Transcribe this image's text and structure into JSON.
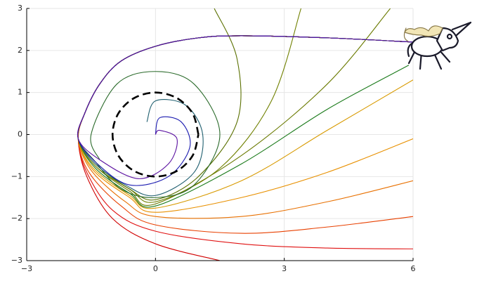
{
  "chart_data": {
    "type": "line",
    "xlim": [
      -3,
      6
    ],
    "ylim": [
      -3,
      3
    ],
    "xticks": [
      {
        "value": -3,
        "label": "−3"
      },
      0,
      3,
      6
    ],
    "yticks": [
      {
        "value": -3,
        "label": "−3"
      },
      {
        "value": -2,
        "label": "−2"
      },
      {
        "value": -1,
        "label": "−1"
      },
      0,
      1,
      2,
      3
    ],
    "grid": true,
    "series": [
      {
        "color": "#d00000",
        "x": [
          6,
          4,
          2,
          1,
          0,
          -0.8,
          -1.3,
          -1.65,
          -1.8,
          -1.6,
          -1.0,
          0,
          1.5
        ],
        "y": [
          2.2,
          2.3,
          2.35,
          2.3,
          2.1,
          1.75,
          1.2,
          0.5,
          -0.1,
          -1.0,
          -2.0,
          -2.6,
          -3.0
        ]
      },
      {
        "color": "#e01010",
        "x": [
          6,
          4,
          2,
          1,
          0,
          -0.8,
          -1.3,
          -1.65,
          -1.8,
          -1.6,
          -1.0,
          0,
          2,
          4,
          6
        ],
        "y": [
          2.2,
          2.3,
          2.35,
          2.3,
          2.1,
          1.75,
          1.2,
          0.5,
          -0.1,
          -0.9,
          -1.8,
          -2.3,
          -2.6,
          -2.7,
          -2.72
        ]
      },
      {
        "color": "#e84000",
        "x": [
          6,
          4,
          2,
          1,
          0,
          -0.8,
          -1.3,
          -1.65,
          -1.8,
          -1.55,
          -0.8,
          0,
          2,
          4,
          6
        ],
        "y": [
          2.2,
          2.3,
          2.35,
          2.3,
          2.1,
          1.75,
          1.2,
          0.5,
          -0.1,
          -0.9,
          -1.7,
          -2.15,
          -2.35,
          -2.2,
          -1.95
        ]
      },
      {
        "color": "#e87000",
        "x": [
          6,
          4,
          2,
          1,
          0,
          -0.8,
          -1.3,
          -1.65,
          -1.8,
          -1.5,
          -0.7,
          0,
          2,
          4,
          6
        ],
        "y": [
          2.2,
          2.3,
          2.35,
          2.3,
          2.1,
          1.75,
          1.2,
          0.5,
          -0.1,
          -0.85,
          -1.6,
          -1.95,
          -1.95,
          -1.6,
          -1.1
        ]
      },
      {
        "color": "#e89000",
        "x": [
          6,
          4,
          2,
          1,
          0,
          -0.8,
          -1.3,
          -1.65,
          -1.8,
          -1.45,
          -0.6,
          0,
          2,
          4,
          6
        ],
        "y": [
          2.2,
          2.3,
          2.35,
          2.3,
          2.1,
          1.75,
          1.2,
          0.5,
          -0.1,
          -0.85,
          -1.5,
          -1.85,
          -1.5,
          -0.9,
          -0.1
        ]
      },
      {
        "color": "#d89a00",
        "x": [
          6,
          4,
          2,
          1,
          0,
          -0.8,
          -1.3,
          -1.65,
          -1.8,
          -1.45,
          -0.6,
          0,
          2,
          4,
          6
        ],
        "y": [
          2.2,
          2.3,
          2.35,
          2.3,
          2.1,
          1.75,
          1.2,
          0.5,
          -0.1,
          -0.8,
          -1.45,
          -1.75,
          -1.1,
          0.1,
          1.3
        ]
      },
      {
        "color": "#1a7a1a",
        "x": [
          6,
          4,
          2,
          1,
          0,
          -0.8,
          -1.3,
          -1.65,
          -1.8,
          -1.4,
          -0.6,
          0,
          2,
          4,
          5.9
        ],
        "y": [
          2.2,
          2.3,
          2.35,
          2.3,
          2.1,
          1.75,
          1.2,
          0.5,
          -0.1,
          -0.8,
          -1.4,
          -1.7,
          -0.7,
          0.6,
          1.65
        ]
      },
      {
        "color": "#6a7a00",
        "x": [
          6,
          4,
          2,
          1,
          0,
          -0.8,
          -1.3,
          -1.65,
          -1.8,
          -1.4,
          -0.6,
          0,
          2,
          4,
          5.47
        ],
        "y": [
          2.2,
          2.3,
          2.35,
          2.3,
          2.1,
          1.75,
          1.2,
          0.5,
          -0.1,
          -0.75,
          -1.35,
          -1.65,
          -0.5,
          1.2,
          3
        ]
      },
      {
        "color": "#708000",
        "x": [
          6,
          4,
          2,
          1,
          0,
          -0.8,
          -1.3,
          -1.65,
          -1.8,
          -1.4,
          -0.6,
          0,
          1.5,
          2.7,
          3.39
        ],
        "y": [
          2.2,
          2.3,
          2.35,
          2.3,
          2.1,
          1.75,
          1.2,
          0.5,
          -0.1,
          -0.75,
          -1.3,
          -1.6,
          -0.8,
          0.8,
          3
        ]
      },
      {
        "color": "#5a7000",
        "x": [
          6,
          4,
          2,
          1,
          0,
          -0.8,
          -1.3,
          -1.65,
          -1.8,
          -1.4,
          -0.6,
          0,
          1,
          1.9,
          1.9,
          1.37
        ],
        "y": [
          2.2,
          2.3,
          2.35,
          2.3,
          2.1,
          1.75,
          1.2,
          0.5,
          -0.1,
          -0.7,
          -1.3,
          -1.55,
          -1.0,
          0.3,
          1.8,
          3
        ]
      },
      {
        "color": "#2a6a2a",
        "x": [
          6,
          4,
          2,
          1,
          0,
          -0.8,
          -1.3,
          -1.65,
          -1.8,
          -1.4,
          -0.8,
          0,
          0.9,
          1.5,
          0.9,
          0,
          -0.9,
          -1.5,
          -1.3
        ],
        "y": [
          2.2,
          2.3,
          2.35,
          2.3,
          2.1,
          1.75,
          1.2,
          0.5,
          -0.1,
          -0.65,
          -1.3,
          -1.5,
          -1.2,
          0,
          1.2,
          1.5,
          1.2,
          0,
          -0.6
        ]
      },
      {
        "color": "#1f5f6f",
        "x": [
          6,
          4,
          2,
          1,
          0,
          -0.8,
          -1.3,
          -1.65,
          -1.8,
          -1.4,
          -0.7,
          0,
          0.9,
          1.1,
          0.7,
          0,
          -0.2
        ],
        "y": [
          2.2,
          2.3,
          2.35,
          2.3,
          2.1,
          1.75,
          1.2,
          0.5,
          -0.1,
          -0.7,
          -1.2,
          -1.45,
          -0.9,
          0,
          0.7,
          0.8,
          0.3
        ]
      },
      {
        "color": "#1a1ab0",
        "x": [
          6,
          4,
          2,
          1,
          0,
          -0.8,
          -1.3,
          -1.65,
          -1.8,
          -1.35,
          -0.6,
          0.3,
          0.8,
          0.6,
          0.1,
          0
        ],
        "y": [
          2.2,
          2.3,
          2.35,
          2.3,
          2.1,
          1.75,
          1.2,
          0.5,
          -0.1,
          -0.7,
          -1.2,
          -1.0,
          -0.3,
          0.3,
          0.4,
          0
        ]
      },
      {
        "color": "#5a10a0",
        "x": [
          6,
          4,
          2,
          1,
          0,
          -0.8,
          -1.3,
          -1.65,
          -1.8,
          -1.3,
          -0.4,
          0.3,
          0.5,
          0.1,
          0
        ],
        "y": [
          2.2,
          2.3,
          2.35,
          2.3,
          2.1,
          1.75,
          1.2,
          0.5,
          -0.1,
          -0.6,
          -1.05,
          -0.7,
          -0.1,
          0.1,
          0
        ]
      },
      {
        "color": "#000000",
        "dashed": true,
        "x": [
          1,
          0.866,
          0.5,
          0,
          -0.5,
          -0.866,
          -1,
          -0.866,
          -0.5,
          0,
          0.5,
          0.866,
          1
        ],
        "y": [
          0,
          0.5,
          0.866,
          1,
          0.866,
          0.5,
          0,
          -0.5,
          -0.866,
          -1,
          -0.866,
          -0.5,
          0
        ]
      }
    ]
  }
}
